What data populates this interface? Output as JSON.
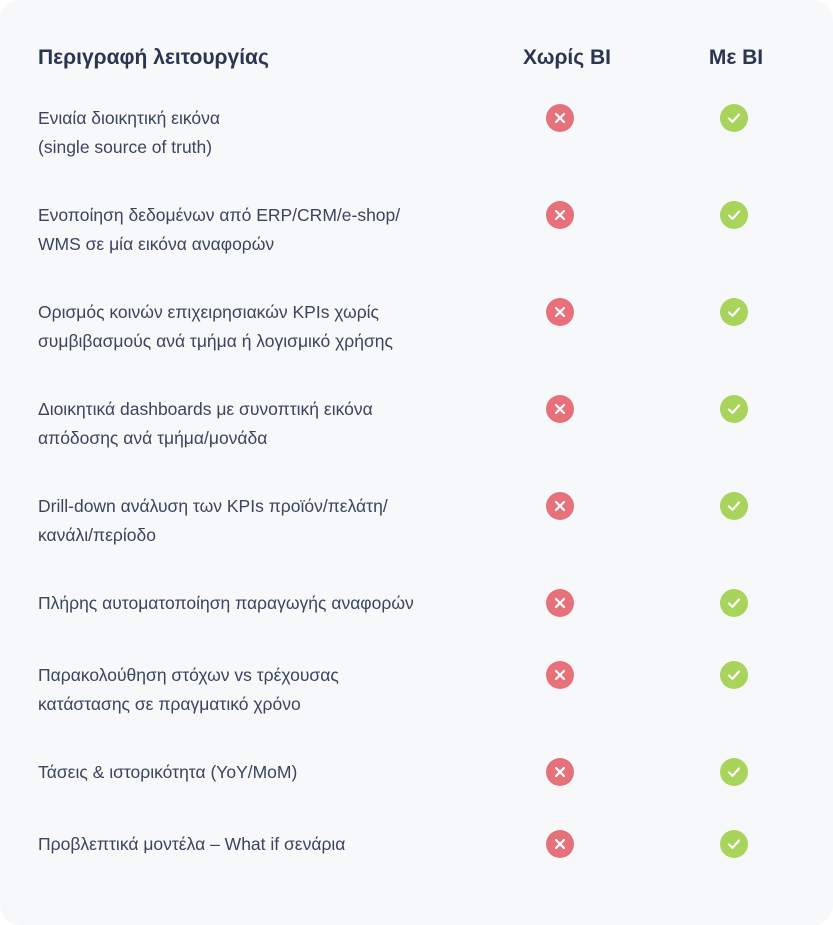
{
  "header": {
    "description": "Περιγραφή λειτουργίας",
    "without_bi": "Χωρίς BI",
    "with_bi": "Με BI"
  },
  "colors": {
    "cross": "#e7717a",
    "check": "#a8d45c",
    "text": "#3b4460",
    "heading": "#2b3551",
    "card_background": "#f7f8fa"
  },
  "icons": {
    "without_bi": "x-circle-icon",
    "with_bi": "check-circle-icon"
  },
  "rows": [
    {
      "lines": [
        "Ενιαία διοικητική εικόνα",
        "(single source of truth)"
      ],
      "without_bi": false,
      "with_bi": true
    },
    {
      "lines": [
        "Ενοποίηση δεδομένων από ERP/CRM/e-shop/",
        "WMS σε μία εικόνα αναφορών"
      ],
      "without_bi": false,
      "with_bi": true
    },
    {
      "lines": [
        "Ορισμός κοινών επιχειρησιακών KPIs χωρίς",
        "συμβιβασμούς ανά τμήμα ή λογισμικό χρήσης"
      ],
      "without_bi": false,
      "with_bi": true
    },
    {
      "lines": [
        "Διοικητικά dashboards με συνοπτική εικόνα",
        "απόδοσης ανά τμήμα/μονάδα"
      ],
      "without_bi": false,
      "with_bi": true
    },
    {
      "lines": [
        "Drill-down ανάλυση των KPIs προϊόν/πελάτη/",
        "κανάλι/περίοδο"
      ],
      "without_bi": false,
      "with_bi": true
    },
    {
      "lines": [
        "Πλήρης αυτοματοποίηση παραγωγής αναφορών"
      ],
      "without_bi": false,
      "with_bi": true
    },
    {
      "lines": [
        "Παρακολούθηση στόχων vs τρέχουσας",
        "κατάστασης σε πραγματικό χρόνο"
      ],
      "without_bi": false,
      "with_bi": true
    },
    {
      "lines": [
        "Τάσεις & ιστορικότητα (YoY/MoM)"
      ],
      "without_bi": false,
      "with_bi": true
    },
    {
      "lines": [
        "Προβλεπτικά μοντέλα – What if σενάρια"
      ],
      "without_bi": false,
      "with_bi": true
    }
  ]
}
